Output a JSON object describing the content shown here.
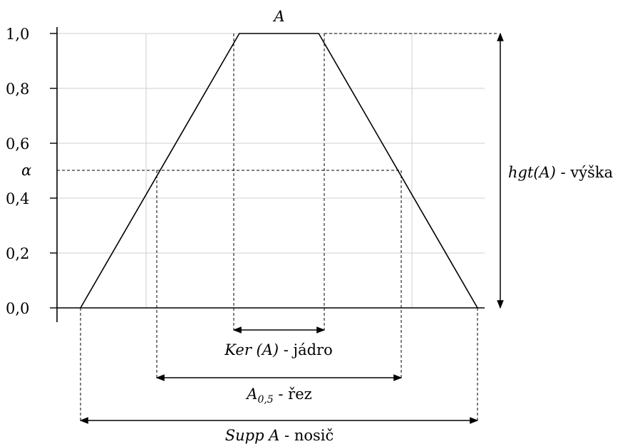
{
  "chart_data": {
    "type": "diagram",
    "title": "A",
    "y_ticks": [
      "0,0",
      "0,2",
      "0,4",
      "0,6",
      "0,8",
      "1,0"
    ],
    "y_values": [
      0.0,
      0.2,
      0.4,
      0.6,
      0.8,
      1.0
    ],
    "alpha_symbol": "α",
    "alpha_value": 0.5,
    "membership_function": {
      "support_start": 0,
      "core_start": 4,
      "core_end": 6,
      "support_end": 10,
      "height": 1.0
    },
    "annotations": {
      "height_fn": "hgt(A)",
      "height_word": " - výška",
      "kernel_fn": "Ker (A)",
      "kernel_word": " - jádro",
      "cut_base": "A",
      "cut_sub": "0,5",
      "cut_word": " - řez",
      "support_fn": "Supp A",
      "support_word": " - nosič"
    }
  }
}
